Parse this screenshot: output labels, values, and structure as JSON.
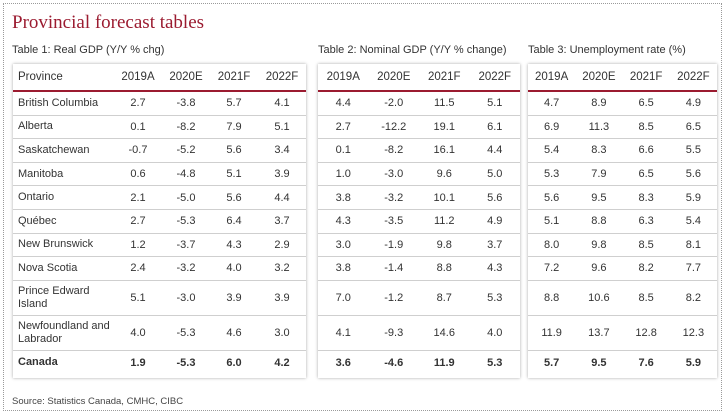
{
  "title": "Provincial forecast tables",
  "source": "Source: Statistics Canada, CMHC, CIBC",
  "rows": [
    {
      "province": "British Columbia",
      "gdp": [
        "2.7",
        "-3.8",
        "5.7",
        "4.1"
      ],
      "nom": [
        "4.4",
        "-2.0",
        "11.5",
        "5.1"
      ],
      "unemp": [
        "4.7",
        "8.9",
        "6.5",
        "4.9"
      ]
    },
    {
      "province": "Alberta",
      "gdp": [
        "0.1",
        "-8.2",
        "7.9",
        "5.1"
      ],
      "nom": [
        "2.7",
        "-12.2",
        "19.1",
        "6.1"
      ],
      "unemp": [
        "6.9",
        "11.3",
        "8.5",
        "6.5"
      ]
    },
    {
      "province": "Saskatchewan",
      "gdp": [
        "-0.7",
        "-5.2",
        "5.6",
        "3.4"
      ],
      "nom": [
        "0.1",
        "-8.2",
        "16.1",
        "4.4"
      ],
      "unemp": [
        "5.4",
        "8.3",
        "6.6",
        "5.5"
      ]
    },
    {
      "province": "Manitoba",
      "gdp": [
        "0.6",
        "-4.8",
        "5.1",
        "3.9"
      ],
      "nom": [
        "1.0",
        "-3.0",
        "9.6",
        "5.0"
      ],
      "unemp": [
        "5.3",
        "7.9",
        "6.5",
        "5.6"
      ]
    },
    {
      "province": "Ontario",
      "gdp": [
        "2.1",
        "-5.0",
        "5.6",
        "4.4"
      ],
      "nom": [
        "3.8",
        "-3.2",
        "10.1",
        "5.6"
      ],
      "unemp": [
        "5.6",
        "9.5",
        "8.3",
        "5.9"
      ]
    },
    {
      "province": "Québec",
      "gdp": [
        "2.7",
        "-5.3",
        "6.4",
        "3.7"
      ],
      "nom": [
        "4.3",
        "-3.5",
        "11.2",
        "4.9"
      ],
      "unemp": [
        "5.1",
        "8.8",
        "6.3",
        "5.4"
      ]
    },
    {
      "province": "New Brunswick",
      "gdp": [
        "1.2",
        "-3.7",
        "4.3",
        "2.9"
      ],
      "nom": [
        "3.0",
        "-1.9",
        "9.8",
        "3.7"
      ],
      "unemp": [
        "8.0",
        "9.8",
        "8.5",
        "8.1"
      ]
    },
    {
      "province": "Nova Scotia",
      "gdp": [
        "2.4",
        "-3.2",
        "4.0",
        "3.2"
      ],
      "nom": [
        "3.8",
        "-1.4",
        "8.8",
        "4.3"
      ],
      "unemp": [
        "7.2",
        "9.6",
        "8.2",
        "7.7"
      ]
    },
    {
      "province": "Prince Edward Island",
      "gdp": [
        "5.1",
        "-3.0",
        "3.9",
        "3.9"
      ],
      "nom": [
        "7.0",
        "-1.2",
        "8.7",
        "5.3"
      ],
      "unemp": [
        "8.8",
        "10.6",
        "8.5",
        "8.2"
      ]
    },
    {
      "province": "Newfoundland and Labrador",
      "gdp": [
        "4.0",
        "-5.3",
        "4.6",
        "3.0"
      ],
      "nom": [
        "4.1",
        "-9.3",
        "14.6",
        "4.0"
      ],
      "unemp": [
        "11.9",
        "13.7",
        "12.8",
        "12.3"
      ]
    },
    {
      "province": "Canada",
      "gdp": [
        "1.9",
        "-5.3",
        "6.0",
        "4.2"
      ],
      "nom": [
        "3.6",
        "-4.6",
        "11.9",
        "5.3"
      ],
      "unemp": [
        "5.7",
        "9.5",
        "7.6",
        "5.9"
      ]
    }
  ],
  "tables": [
    {
      "title": "Table 1: Real GDP (Y/Y % chg)",
      "key": "gdp",
      "first_header": "Province",
      "headers": [
        "2019A",
        "2020E",
        "2021F",
        "2022F"
      ]
    },
    {
      "title": "Table 2: Nominal GDP (Y/Y % change)",
      "key": "nom",
      "headers": [
        "2019A",
        "2020E",
        "2021F",
        "2022F"
      ]
    },
    {
      "title": "Table 3: Unemployment rate (%)",
      "key": "unemp",
      "headers": [
        "2019A",
        "2020E",
        "2021F",
        "2022F"
      ]
    }
  ],
  "colors": {
    "accent": "#9b1b30",
    "divider": "#cfcfcf"
  }
}
